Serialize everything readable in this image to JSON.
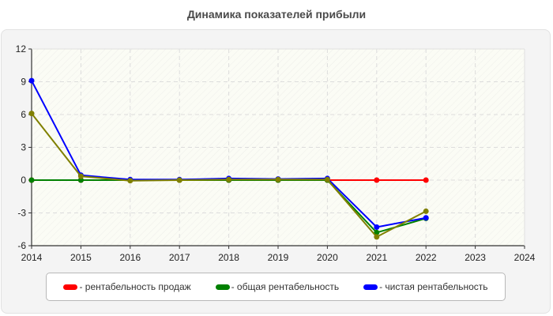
{
  "chart_data": {
    "type": "line",
    "title": "Динамика показателей прибыли",
    "xlabel": "",
    "ylabel": "",
    "x": [
      2014,
      2015,
      2016,
      2017,
      2018,
      2019,
      2020,
      2021,
      2022
    ],
    "x_ticks": [
      "2014",
      "2015",
      "2016",
      "2017",
      "2018",
      "2019",
      "2020",
      "2021",
      "2022",
      "2023",
      "2024"
    ],
    "xlim": [
      2014,
      2024
    ],
    "y_ticks": [
      "12",
      "9",
      "6",
      "3",
      "0",
      "-3",
      "-6"
    ],
    "ylim": [
      -6,
      12
    ],
    "grid": true,
    "legend_position": "bottom",
    "series": [
      {
        "name": "рентабельность продаж",
        "color": "#ff0000",
        "values": [
          0,
          0,
          0,
          0,
          0,
          0,
          0,
          0,
          0
        ],
        "in_legend": true
      },
      {
        "name": "общая рентабельность",
        "color": "#008000",
        "values": [
          0,
          0,
          0,
          0,
          0,
          0,
          0,
          -4.8,
          -3.5
        ],
        "in_legend": true
      },
      {
        "name": "чистая рентабельность",
        "color": "#0000ff",
        "values": [
          9.1,
          0.45,
          0.05,
          0.05,
          0.15,
          0.1,
          0.15,
          -4.3,
          -3.45
        ],
        "in_legend": true
      },
      {
        "name": "",
        "color": "#808000",
        "values": [
          6.1,
          0.35,
          -0.05,
          0,
          0.05,
          0.05,
          0.05,
          -5.2,
          -2.85
        ],
        "in_legend": false
      }
    ]
  },
  "legend": {
    "items": [
      {
        "label": "- рентабельность продаж",
        "color": "#ff0000"
      },
      {
        "label": "- общая рентабельность",
        "color": "#008000"
      },
      {
        "label": "- чистая рентабельность",
        "color": "#0000ff"
      }
    ]
  }
}
